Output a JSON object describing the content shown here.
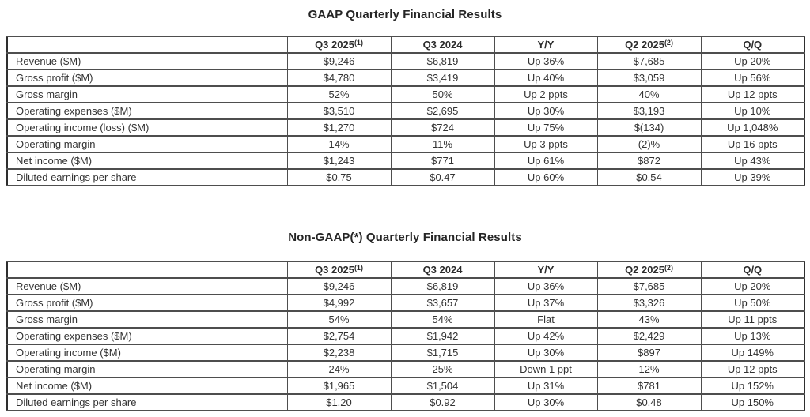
{
  "style": {
    "background_color": "#ffffff",
    "title_color": "#252525",
    "text_color": "#333333",
    "grid_color": "#4e4e4e",
    "frame_color": "#2e2e2e"
  },
  "tables": [
    {
      "title": "GAAP Quarterly Financial Results",
      "columns": [
        {
          "label": "",
          "sup": ""
        },
        {
          "label": "Q3 2025",
          "sup": "(1)"
        },
        {
          "label": "Q3 2024",
          "sup": ""
        },
        {
          "label": "Y/Y",
          "sup": ""
        },
        {
          "label": "Q2 2025",
          "sup": "(2)"
        },
        {
          "label": "Q/Q",
          "sup": ""
        }
      ],
      "rows": [
        {
          "label": "Revenue ($M)",
          "values": [
            "$9,246",
            "$6,819",
            "Up 36%",
            "$7,685",
            "Up 20%"
          ]
        },
        {
          "label": "Gross profit ($M)",
          "values": [
            "$4,780",
            "$3,419",
            "Up 40%",
            "$3,059",
            "Up 56%"
          ]
        },
        {
          "label": "Gross margin",
          "values": [
            "52%",
            "50%",
            "Up 2 ppts",
            "40%",
            "Up 12 ppts"
          ]
        },
        {
          "label": "Operating expenses ($M)",
          "values": [
            "$3,510",
            "$2,695",
            "Up 30%",
            "$3,193",
            "Up 10%"
          ]
        },
        {
          "label": "Operating income (loss) ($M)",
          "values": [
            "$1,270",
            "$724",
            "Up 75%",
            "$(134)",
            "Up 1,048%"
          ]
        },
        {
          "label": "Operating margin",
          "values": [
            "14%",
            "11%",
            "Up 3 ppts",
            "(2)%",
            "Up 16 ppts"
          ]
        },
        {
          "label": "Net income ($M)",
          "values": [
            "$1,243",
            "$771",
            "Up 61%",
            "$872",
            "Up 43%"
          ]
        },
        {
          "label": "Diluted earnings per share",
          "values": [
            "$0.75",
            "$0.47",
            "Up 60%",
            "$0.54",
            "Up 39%"
          ]
        }
      ]
    },
    {
      "title": "Non-GAAP(*) Quarterly Financial Results",
      "columns": [
        {
          "label": "",
          "sup": ""
        },
        {
          "label": "Q3 2025",
          "sup": "(1)"
        },
        {
          "label": "Q3 2024",
          "sup": ""
        },
        {
          "label": "Y/Y",
          "sup": ""
        },
        {
          "label": "Q2 2025",
          "sup": "(2)"
        },
        {
          "label": "Q/Q",
          "sup": ""
        }
      ],
      "rows": [
        {
          "label": "Revenue ($M)",
          "values": [
            "$9,246",
            "$6,819",
            "Up 36%",
            "$7,685",
            "Up 20%"
          ]
        },
        {
          "label": "Gross profit ($M)",
          "values": [
            "$4,992",
            "$3,657",
            "Up 37%",
            "$3,326",
            "Up 50%"
          ]
        },
        {
          "label": "Gross margin",
          "values": [
            "54%",
            "54%",
            "Flat",
            "43%",
            "Up 11 ppts"
          ]
        },
        {
          "label": "Operating expenses ($M)",
          "values": [
            "$2,754",
            "$1,942",
            "Up 42%",
            "$2,429",
            "Up 13%"
          ]
        },
        {
          "label": "Operating income ($M)",
          "values": [
            "$2,238",
            "$1,715",
            "Up 30%",
            "$897",
            "Up 149%"
          ]
        },
        {
          "label": "Operating margin",
          "values": [
            "24%",
            "25%",
            "Down 1 ppt",
            "12%",
            "Up 12 ppts"
          ]
        },
        {
          "label": "Net income ($M)",
          "values": [
            "$1,965",
            "$1,504",
            "Up 31%",
            "$781",
            "Up 152%"
          ]
        },
        {
          "label": "Diluted earnings per share",
          "values": [
            "$1.20",
            "$0.92",
            "Up 30%",
            "$0.48",
            "Up 150%"
          ]
        }
      ]
    }
  ]
}
